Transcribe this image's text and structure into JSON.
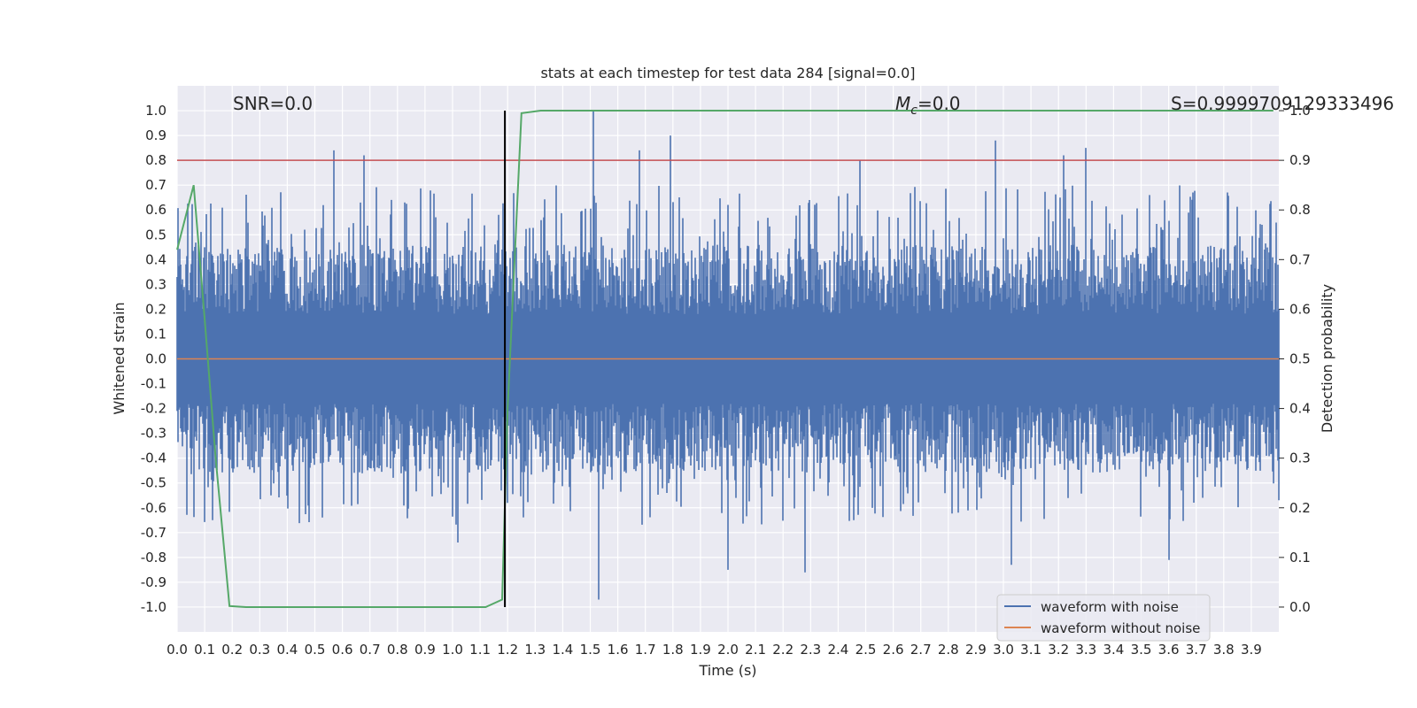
{
  "chart_data": {
    "type": "line",
    "title": "stats at each timestep for test data 284 [signal=0.0]",
    "xlabel": "Time (s)",
    "ylabel": "Whitened strain",
    "y2label": "Detection probability",
    "xlim": [
      0.0,
      4.0
    ],
    "ylim": [
      -1.1,
      1.1
    ],
    "y2lim": [
      -0.05,
      1.05
    ],
    "x_ticks": [
      "0.0",
      "0.1",
      "0.2",
      "0.3",
      "0.4",
      "0.5",
      "0.6",
      "0.7",
      "0.8",
      "0.9",
      "1.0",
      "1.1",
      "1.2",
      "1.3",
      "1.4",
      "1.5",
      "1.6",
      "1.7",
      "1.8",
      "1.9",
      "2.0",
      "2.1",
      "2.2",
      "2.3",
      "2.4",
      "2.5",
      "2.6",
      "2.7",
      "2.8",
      "2.9",
      "3.0",
      "3.1",
      "3.2",
      "3.3",
      "3.4",
      "3.5",
      "3.6",
      "3.7",
      "3.8",
      "3.9"
    ],
    "y_ticks": [
      "1.0",
      "0.9",
      "0.8",
      "0.7",
      "0.6",
      "0.5",
      "0.4",
      "0.3",
      "0.2",
      "0.1",
      "0.0",
      "-0.1",
      "-0.2",
      "-0.3",
      "-0.4",
      "-0.5",
      "-0.6",
      "-0.7",
      "-0.8",
      "-0.9",
      "-1.0"
    ],
    "y2_ticks": [
      "1.0",
      "0.9",
      "0.8",
      "0.7",
      "0.6",
      "0.5",
      "0.4",
      "0.3",
      "0.2",
      "0.1",
      "0.0"
    ],
    "annotations": {
      "snr": "SNR=0.0",
      "mc_symbol": "M",
      "mc_sub": "c",
      "mc_value": "=0.0",
      "s": "S=0.9999709129333496"
    },
    "series": [
      {
        "name": "waveform with noise",
        "color": "#4c72b0",
        "axis": "left",
        "note": "dense noise waveform, 0–4 s, mostly within ±0.5 with spikes",
        "peaks": [
          [
            1.51,
            1.0
          ],
          [
            0.57,
            0.84
          ],
          [
            1.79,
            0.9
          ],
          [
            2.97,
            0.88
          ],
          [
            3.3,
            0.85
          ],
          [
            1.68,
            0.84
          ],
          [
            0.68,
            0.82
          ],
          [
            3.22,
            0.82
          ],
          [
            2.48,
            0.8
          ],
          [
            1.53,
            -0.97
          ],
          [
            2.28,
            -0.86
          ],
          [
            3.03,
            -0.83
          ],
          [
            2.0,
            -0.85
          ],
          [
            3.6,
            -0.81
          ],
          [
            1.02,
            -0.74
          ]
        ]
      },
      {
        "name": "waveform without noise",
        "color": "#dd8452",
        "axis": "left",
        "x": [
          0.0,
          4.0
        ],
        "y": [
          0.0,
          0.0
        ]
      },
      {
        "name": "",
        "color": "#55a868",
        "axis": "right",
        "x": [
          0.0,
          0.06,
          0.1,
          0.14,
          0.19,
          0.25,
          0.5,
          0.8,
          1.0,
          1.12,
          1.18,
          1.2,
          1.25,
          1.32,
          2.0,
          3.0,
          3.98
        ],
        "y": [
          0.72,
          0.85,
          0.58,
          0.3,
          0.002,
          0.0,
          0.0,
          0.0,
          0.0,
          0.0,
          0.015,
          0.4,
          0.995,
          1.0,
          1.0,
          1.0,
          1.0
        ]
      }
    ],
    "threshold": {
      "axis": "right",
      "value": 0.9,
      "color": "#c44e52"
    },
    "marker_line": {
      "x": 1.19,
      "color": "#000000"
    },
    "legend": {
      "placement": "lower right",
      "entries": [
        "waveform with noise",
        "waveform without noise"
      ]
    },
    "grid": true
  }
}
